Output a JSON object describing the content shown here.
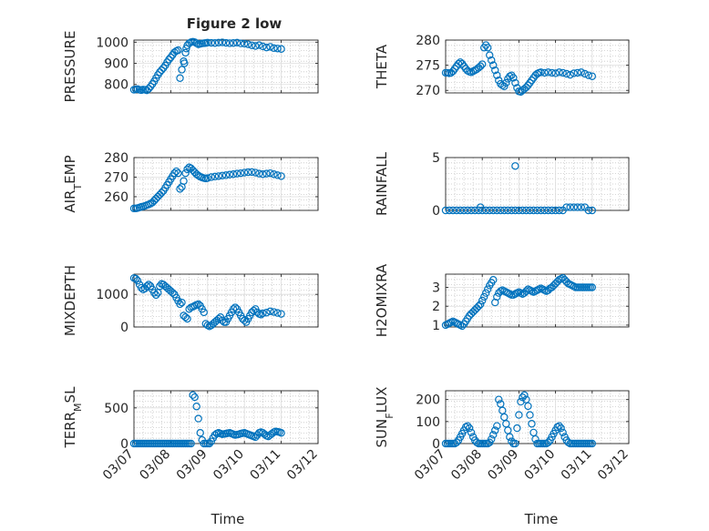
{
  "figure": {
    "title": "Figure 2 low",
    "xlabel": "Time",
    "xticks": [
      "03/07",
      "03/08",
      "03/09",
      "03/10",
      "03/11",
      "03/12"
    ],
    "marker_color": "#0072BD"
  },
  "chart_data": [
    {
      "type": "scatter",
      "ylabel": "PRESSURE",
      "ylim": [
        760,
        1010
      ],
      "yticks": [
        800,
        900,
        1000
      ],
      "xlim": [
        0,
        5
      ],
      "grid": true,
      "x": [
        0.0,
        0.05,
        0.1,
        0.15,
        0.2,
        0.25,
        0.3,
        0.35,
        0.4,
        0.45,
        0.5,
        0.55,
        0.6,
        0.65,
        0.7,
        0.75,
        0.8,
        0.85,
        0.9,
        0.95,
        1.0,
        1.05,
        1.1,
        1.15,
        1.2,
        1.25,
        1.3,
        1.35,
        1.37,
        1.4,
        1.42,
        1.45,
        1.5,
        1.55,
        1.6,
        1.65,
        1.7,
        1.75,
        1.8,
        1.85,
        1.9,
        1.95,
        2.0,
        2.1,
        2.2,
        2.3,
        2.4,
        2.5,
        2.6,
        2.7,
        2.8,
        2.9,
        3.0,
        3.1,
        3.2,
        3.3,
        3.4,
        3.5,
        3.6,
        3.7,
        3.8,
        3.9,
        4.0
      ],
      "y": [
        775,
        777,
        778,
        775,
        773,
        776,
        775,
        772,
        780,
        790,
        802,
        815,
        830,
        845,
        858,
        868,
        878,
        890,
        905,
        918,
        928,
        940,
        952,
        958,
        962,
        830,
        870,
        910,
        900,
        950,
        970,
        985,
        995,
        1000,
        1002,
        1000,
        995,
        990,
        992,
        994,
        995,
        996,
        998,
        997,
        996,
        998,
        999,
        997,
        995,
        996,
        998,
        994,
        993,
        990,
        985,
        982,
        986,
        980,
        975,
        978,
        972,
        970,
        968
      ]
    },
    {
      "type": "scatter",
      "ylabel": "THETA",
      "ylim": [
        269.5,
        280
      ],
      "yticks": [
        270,
        275,
        280
      ],
      "xlim": [
        0,
        5
      ],
      "grid": true,
      "x": [
        0.0,
        0.05,
        0.1,
        0.15,
        0.2,
        0.25,
        0.3,
        0.35,
        0.4,
        0.45,
        0.5,
        0.55,
        0.6,
        0.65,
        0.7,
        0.75,
        0.8,
        0.85,
        0.9,
        0.95,
        1.0,
        1.05,
        1.1,
        1.15,
        1.2,
        1.25,
        1.3,
        1.35,
        1.4,
        1.45,
        1.5,
        1.55,
        1.6,
        1.65,
        1.7,
        1.75,
        1.8,
        1.85,
        1.9,
        1.95,
        2.0,
        2.05,
        2.1,
        2.15,
        2.2,
        2.25,
        2.3,
        2.35,
        2.4,
        2.45,
        2.5,
        2.55,
        2.6,
        2.7,
        2.8,
        2.9,
        3.0,
        3.1,
        3.2,
        3.3,
        3.4,
        3.5,
        3.6,
        3.7,
        3.8,
        3.9,
        4.0
      ],
      "y": [
        273.5,
        273.5,
        273.4,
        273.5,
        273.8,
        274.3,
        274.8,
        275.3,
        275.6,
        275.3,
        274.8,
        274.3,
        273.9,
        273.7,
        273.6,
        273.8,
        274.0,
        274.2,
        274.5,
        274.8,
        275.2,
        278.5,
        279.0,
        278.5,
        277.0,
        276.0,
        275.0,
        274.0,
        273.0,
        272.0,
        271.3,
        271.0,
        270.8,
        271.5,
        272.3,
        272.8,
        273.0,
        272.5,
        271.5,
        270.5,
        269.8,
        269.7,
        270.0,
        270.3,
        270.6,
        271.0,
        271.5,
        272.0,
        272.5,
        273.0,
        273.3,
        273.5,
        273.6,
        273.5,
        273.6,
        273.5,
        273.4,
        273.6,
        273.5,
        273.3,
        273.1,
        273.4,
        273.5,
        273.6,
        273.3,
        273.0,
        272.8
      ]
    },
    {
      "type": "scatter",
      "ylabel": "AIR_TEMP",
      "ylim": [
        253,
        280
      ],
      "yticks": [
        260,
        270,
        280
      ],
      "xlim": [
        0,
        5
      ],
      "grid": true,
      "x": [
        0.0,
        0.05,
        0.1,
        0.15,
        0.2,
        0.25,
        0.3,
        0.35,
        0.4,
        0.45,
        0.5,
        0.55,
        0.6,
        0.65,
        0.7,
        0.75,
        0.8,
        0.85,
        0.9,
        0.95,
        1.0,
        1.05,
        1.1,
        1.15,
        1.2,
        1.25,
        1.3,
        1.35,
        1.4,
        1.45,
        1.5,
        1.55,
        1.6,
        1.65,
        1.7,
        1.75,
        1.8,
        1.85,
        1.9,
        1.95,
        2.0,
        2.1,
        2.2,
        2.3,
        2.4,
        2.5,
        2.6,
        2.7,
        2.8,
        2.9,
        3.0,
        3.1,
        3.2,
        3.3,
        3.4,
        3.5,
        3.6,
        3.7,
        3.8,
        3.9,
        4.0
      ],
      "y": [
        254,
        254,
        254.2,
        254.5,
        254.8,
        255,
        255.3,
        255.7,
        256,
        256.5,
        257,
        258,
        259,
        260,
        261,
        262,
        263,
        264.5,
        266,
        267.5,
        269,
        270.5,
        272,
        273,
        272,
        264,
        265,
        268,
        272,
        274,
        275,
        274.5,
        273.5,
        272.5,
        271.5,
        270.8,
        270.2,
        269.8,
        269.5,
        269.3,
        269.5,
        270,
        270.3,
        270.5,
        270.8,
        271,
        271.3,
        271.5,
        271.8,
        272,
        272.3,
        272.5,
        272.6,
        272.3,
        271.8,
        271.5,
        271.8,
        272,
        271.5,
        271,
        270.5
      ]
    },
    {
      "type": "scatter",
      "ylabel": "RAINFALL",
      "ylim": [
        0,
        5
      ],
      "yticks": [
        0,
        5
      ],
      "xlim": [
        0,
        5
      ],
      "grid": true,
      "x": [
        0.0,
        0.1,
        0.2,
        0.3,
        0.4,
        0.5,
        0.6,
        0.7,
        0.8,
        0.9,
        1.0,
        1.1,
        1.2,
        1.3,
        1.4,
        1.5,
        1.6,
        1.7,
        1.8,
        1.9,
        2.0,
        2.1,
        2.2,
        2.3,
        2.4,
        2.5,
        2.6,
        2.7,
        2.8,
        2.9,
        3.0,
        3.1,
        3.2,
        3.3,
        3.4,
        3.5,
        3.6,
        3.7,
        3.8,
        3.9,
        4.0,
        0.95,
        1.9
      ],
      "y": [
        0,
        0,
        0,
        0,
        0,
        0,
        0,
        0,
        0,
        0,
        0,
        0,
        0,
        0,
        0,
        0,
        0,
        0,
        0,
        0,
        0,
        0,
        0,
        0,
        0,
        0,
        0,
        0,
        0,
        0,
        0,
        0,
        0,
        0.3,
        0.3,
        0.3,
        0.3,
        0.3,
        0.3,
        0,
        0,
        0.3,
        4.2
      ]
    },
    {
      "type": "scatter",
      "ylabel": "MIXDEPTH",
      "ylim": [
        0,
        1620
      ],
      "yticks": [
        0,
        1000
      ],
      "xlim": [
        0,
        5
      ],
      "grid": true,
      "x": [
        0.0,
        0.05,
        0.1,
        0.15,
        0.2,
        0.25,
        0.3,
        0.35,
        0.4,
        0.45,
        0.5,
        0.55,
        0.6,
        0.65,
        0.7,
        0.75,
        0.8,
        0.85,
        0.9,
        0.95,
        1.0,
        1.05,
        1.1,
        1.15,
        1.2,
        1.25,
        1.3,
        1.35,
        1.4,
        1.45,
        1.5,
        1.55,
        1.6,
        1.65,
        1.7,
        1.75,
        1.8,
        1.85,
        1.9,
        1.95,
        2.0,
        2.05,
        2.1,
        2.15,
        2.2,
        2.25,
        2.3,
        2.35,
        2.4,
        2.45,
        2.5,
        2.55,
        2.6,
        2.65,
        2.7,
        2.75,
        2.8,
        2.85,
        2.9,
        2.95,
        3.0,
        3.05,
        3.1,
        3.15,
        3.2,
        3.25,
        3.3,
        3.35,
        3.4,
        3.45,
        3.5,
        3.6,
        3.7,
        3.8,
        3.9,
        4.0
      ],
      "y": [
        1500,
        1480,
        1420,
        1300,
        1200,
        1150,
        1180,
        1250,
        1300,
        1250,
        1150,
        1050,
        980,
        1050,
        1250,
        1320,
        1300,
        1250,
        1200,
        1150,
        1100,
        1050,
        1000,
        900,
        800,
        700,
        750,
        350,
        300,
        250,
        550,
        600,
        620,
        650,
        680,
        700,
        650,
        550,
        450,
        100,
        50,
        20,
        50,
        100,
        150,
        200,
        250,
        300,
        200,
        150,
        150,
        250,
        350,
        450,
        550,
        600,
        550,
        450,
        350,
        250,
        200,
        150,
        250,
        350,
        450,
        500,
        550,
        450,
        400,
        380,
        420,
        440,
        480,
        460,
        430,
        400
      ]
    },
    {
      "type": "scatter",
      "ylabel": "H2OMIXRA",
      "ylim": [
        0.9,
        3.7
      ],
      "yticks": [
        1,
        2,
        3
      ],
      "xlim": [
        0,
        5
      ],
      "grid": true,
      "x": [
        0.0,
        0.05,
        0.1,
        0.15,
        0.2,
        0.25,
        0.3,
        0.35,
        0.4,
        0.45,
        0.5,
        0.55,
        0.6,
        0.65,
        0.7,
        0.75,
        0.8,
        0.85,
        0.9,
        0.95,
        1.0,
        1.05,
        1.1,
        1.15,
        1.2,
        1.25,
        1.3,
        1.35,
        1.4,
        1.45,
        1.5,
        1.55,
        1.6,
        1.65,
        1.7,
        1.75,
        1.8,
        1.85,
        1.9,
        1.95,
        2.0,
        2.05,
        2.1,
        2.15,
        2.2,
        2.25,
        2.3,
        2.35,
        2.4,
        2.45,
        2.5,
        2.55,
        2.6,
        2.65,
        2.7,
        2.75,
        2.8,
        2.85,
        2.9,
        2.95,
        3.0,
        3.05,
        3.1,
        3.15,
        3.2,
        3.25,
        3.3,
        3.35,
        3.4,
        3.45,
        3.5,
        3.55,
        3.6,
        3.65,
        3.7,
        3.75,
        3.8,
        3.85,
        3.9,
        3.95,
        4.0
      ],
      "y": [
        1.0,
        1.05,
        1.1,
        1.15,
        1.2,
        1.15,
        1.1,
        1.05,
        1.0,
        0.95,
        1.05,
        1.2,
        1.35,
        1.5,
        1.6,
        1.7,
        1.8,
        1.9,
        2.0,
        2.1,
        2.3,
        2.5,
        2.7,
        2.9,
        3.1,
        3.25,
        3.4,
        2.2,
        2.5,
        2.7,
        2.8,
        2.85,
        2.8,
        2.75,
        2.7,
        2.65,
        2.6,
        2.6,
        2.65,
        2.7,
        2.75,
        2.7,
        2.65,
        2.7,
        2.8,
        2.9,
        2.85,
        2.8,
        2.75,
        2.8,
        2.85,
        2.9,
        2.95,
        2.9,
        2.85,
        2.8,
        2.85,
        2.95,
        3.0,
        3.1,
        3.2,
        3.3,
        3.4,
        3.45,
        3.5,
        3.4,
        3.3,
        3.2,
        3.15,
        3.1,
        3.05,
        3.0,
        3.0,
        3.0,
        3.0,
        3.0,
        3.0,
        3.0,
        3.0,
        3.0,
        3.0
      ]
    },
    {
      "type": "scatter",
      "ylabel": "TERR_MSL",
      "ylim": [
        0,
        740
      ],
      "yticks": [
        0,
        500
      ],
      "xlim": [
        0,
        5
      ],
      "grid": true,
      "x": [
        0.0,
        0.05,
        0.1,
        0.15,
        0.2,
        0.25,
        0.3,
        0.35,
        0.4,
        0.45,
        0.5,
        0.55,
        0.6,
        0.65,
        0.7,
        0.75,
        0.8,
        0.85,
        0.9,
        0.95,
        1.0,
        1.05,
        1.1,
        1.15,
        1.2,
        1.25,
        1.3,
        1.35,
        1.4,
        1.45,
        1.5,
        1.55,
        1.6,
        1.65,
        1.7,
        1.75,
        1.8,
        1.85,
        1.9,
        1.95,
        2.0,
        2.05,
        2.1,
        2.15,
        2.2,
        2.25,
        2.3,
        2.35,
        2.4,
        2.45,
        2.5,
        2.55,
        2.6,
        2.65,
        2.7,
        2.75,
        2.8,
        2.85,
        2.9,
        2.95,
        3.0,
        3.05,
        3.1,
        3.15,
        3.2,
        3.25,
        3.3,
        3.35,
        3.4,
        3.45,
        3.5,
        3.55,
        3.6,
        3.65,
        3.7,
        3.75,
        3.8,
        3.85,
        3.9,
        3.95,
        4.0
      ],
      "y": [
        0,
        0,
        0,
        0,
        0,
        0,
        0,
        0,
        0,
        0,
        0,
        0,
        0,
        0,
        0,
        0,
        0,
        0,
        0,
        0,
        0,
        0,
        0,
        0,
        0,
        0,
        0,
        0,
        0,
        0,
        0,
        0,
        680,
        650,
        520,
        350,
        150,
        50,
        0,
        0,
        0,
        0,
        30,
        80,
        120,
        140,
        150,
        140,
        130,
        135,
        140,
        145,
        150,
        140,
        130,
        120,
        125,
        130,
        140,
        145,
        150,
        140,
        130,
        120,
        110,
        100,
        90,
        120,
        150,
        160,
        150,
        130,
        110,
        100,
        120,
        140,
        160,
        170,
        165,
        160,
        150
      ]
    },
    {
      "type": "scatter",
      "ylabel": "SUN_FLUX",
      "ylim": [
        0,
        240
      ],
      "yticks": [
        0,
        100,
        200
      ],
      "xlim": [
        0,
        5
      ],
      "grid": true,
      "x": [
        0.0,
        0.05,
        0.1,
        0.15,
        0.2,
        0.25,
        0.3,
        0.35,
        0.4,
        0.45,
        0.5,
        0.55,
        0.6,
        0.65,
        0.7,
        0.75,
        0.8,
        0.85,
        0.9,
        0.95,
        1.0,
        1.05,
        1.1,
        1.15,
        1.2,
        1.25,
        1.3,
        1.35,
        1.4,
        1.45,
        1.5,
        1.55,
        1.6,
        1.65,
        1.7,
        1.75,
        1.8,
        1.85,
        1.9,
        1.95,
        2.0,
        2.05,
        2.1,
        2.15,
        2.2,
        2.25,
        2.3,
        2.35,
        2.4,
        2.45,
        2.5,
        2.55,
        2.6,
        2.65,
        2.7,
        2.75,
        2.8,
        2.85,
        2.9,
        2.95,
        3.0,
        3.05,
        3.1,
        3.15,
        3.2,
        3.25,
        3.3,
        3.35,
        3.4,
        3.45,
        3.5,
        3.55,
        3.6,
        3.65,
        3.7,
        3.75,
        3.8,
        3.85,
        3.9,
        3.95,
        4.0
      ],
      "y": [
        0,
        0,
        0,
        0,
        0,
        0,
        5,
        15,
        30,
        45,
        60,
        75,
        80,
        70,
        50,
        30,
        15,
        5,
        0,
        0,
        0,
        0,
        0,
        0,
        5,
        20,
        40,
        60,
        80,
        200,
        180,
        150,
        120,
        90,
        60,
        30,
        10,
        0,
        0,
        70,
        130,
        190,
        210,
        220,
        200,
        170,
        130,
        90,
        50,
        20,
        0,
        0,
        0,
        0,
        0,
        0,
        5,
        15,
        30,
        45,
        60,
        75,
        80,
        70,
        50,
        30,
        15,
        5,
        0,
        0,
        0,
        0,
        0,
        0,
        0,
        0,
        0,
        0,
        0,
        0,
        0
      ]
    }
  ]
}
